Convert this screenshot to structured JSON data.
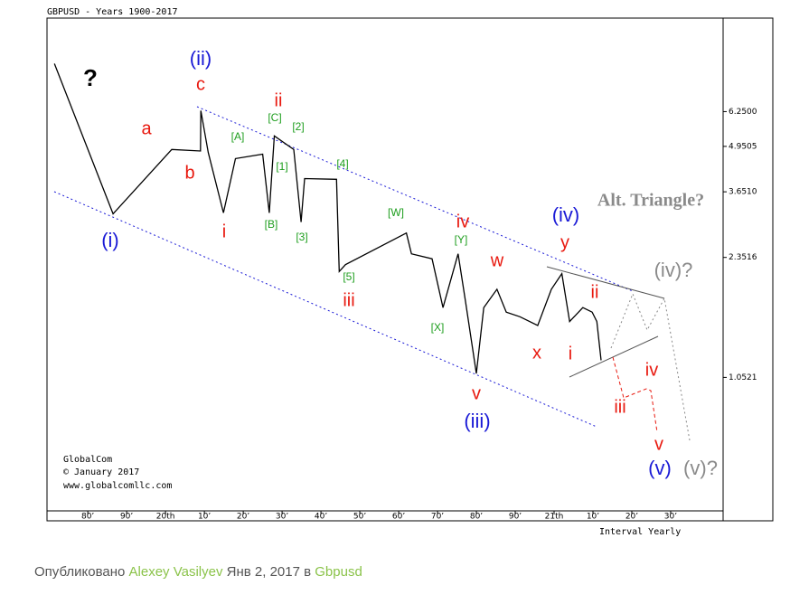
{
  "chart_data": {
    "type": "line",
    "title": "GBPUSD - Years 1900-2017",
    "interval": "Interval Yearly",
    "credits": [
      "GlobalCom",
      "© January 2017",
      "www.globalcomllc.com"
    ],
    "yscale": "log",
    "color": "#000000",
    "grid": false,
    "xlim": [
      1869.5,
      2043.5
    ],
    "ylim": [
      0.43,
      11.7
    ],
    "yticks": [
      {
        "value": 6.25,
        "label": "6.2500"
      },
      4.9505,
      {
        "value": 3.651,
        "label": "3.6510"
      },
      2.3516,
      1.0521
    ],
    "xticks": [
      {
        "value": 1880,
        "label": "80’"
      },
      {
        "value": 1890,
        "label": "90’"
      },
      {
        "value": 1900,
        "label": "20th"
      },
      {
        "value": 1910,
        "label": "10’"
      },
      {
        "value": 1920,
        "label": "20’"
      },
      {
        "value": 1930,
        "label": "30’"
      },
      {
        "value": 1940,
        "label": "40’"
      },
      {
        "value": 1950,
        "label": "50’"
      },
      {
        "value": 1960,
        "label": "60’"
      },
      {
        "value": 1970,
        "label": "70’"
      },
      {
        "value": 1980,
        "label": "80’"
      },
      {
        "value": 1990,
        "label": "90’"
      },
      {
        "value": 2000,
        "label": "21th"
      },
      {
        "value": 2010,
        "label": "10’"
      },
      {
        "value": 2020,
        "label": "20’"
      },
      {
        "value": 2030,
        "label": "30’"
      }
    ],
    "x": [
      1871.4,
      1886.5,
      1901.6,
      1909,
      1909.1,
      1911,
      1914.9,
      1918,
      1925,
      1926.7,
      1928,
      1933,
      1934.9,
      1935.8,
      1944,
      1944.7,
      1946.3,
      1962,
      1963.3,
      1968.6,
      1971.4,
      1975.3,
      1977.2,
      1980,
      1981.9,
      1985.3,
      1987.7,
      1991.2,
      1995.8,
      1999.3,
      2002,
      2004,
      2007.4,
      2009.8,
      2011,
      2012.1
    ],
    "values": [
      8.62,
      3.15,
      4.85,
      4.8,
      6.29,
      4.75,
      3.17,
      4.56,
      4.7,
      3.17,
      5.31,
      4.85,
      2.98,
      3.99,
      3.97,
      2.14,
      2.24,
      2.77,
      2.41,
      2.33,
      1.68,
      2.41,
      1.75,
      1.08,
      1.68,
      1.9,
      1.63,
      1.58,
      1.49,
      1.9,
      2.11,
      1.53,
      1.68,
      1.63,
      1.53,
      1.18
    ],
    "annotations": [
      "?",
      "(ii)",
      "c",
      "a",
      "b",
      "(i)",
      "i",
      "ii",
      "[C]",
      "[2]",
      "[A]",
      "[1]",
      "[4]",
      "[B]",
      "[3]",
      "[W]",
      "[5]",
      "iii",
      "iv",
      "[Y]",
      "w",
      "[X]",
      "(iv)",
      "y",
      "ii",
      "i",
      "x",
      "v",
      "(iii)",
      "Alt. Triangle?",
      "(iv)?",
      "iv",
      "iii",
      "v",
      "(v)",
      "(v)?"
    ]
  },
  "footer": {
    "published": "Опубликовано",
    "author": "Alexey Vasilyev",
    "date": "Янв 2, 2017 в",
    "category": "Gbpusd"
  }
}
